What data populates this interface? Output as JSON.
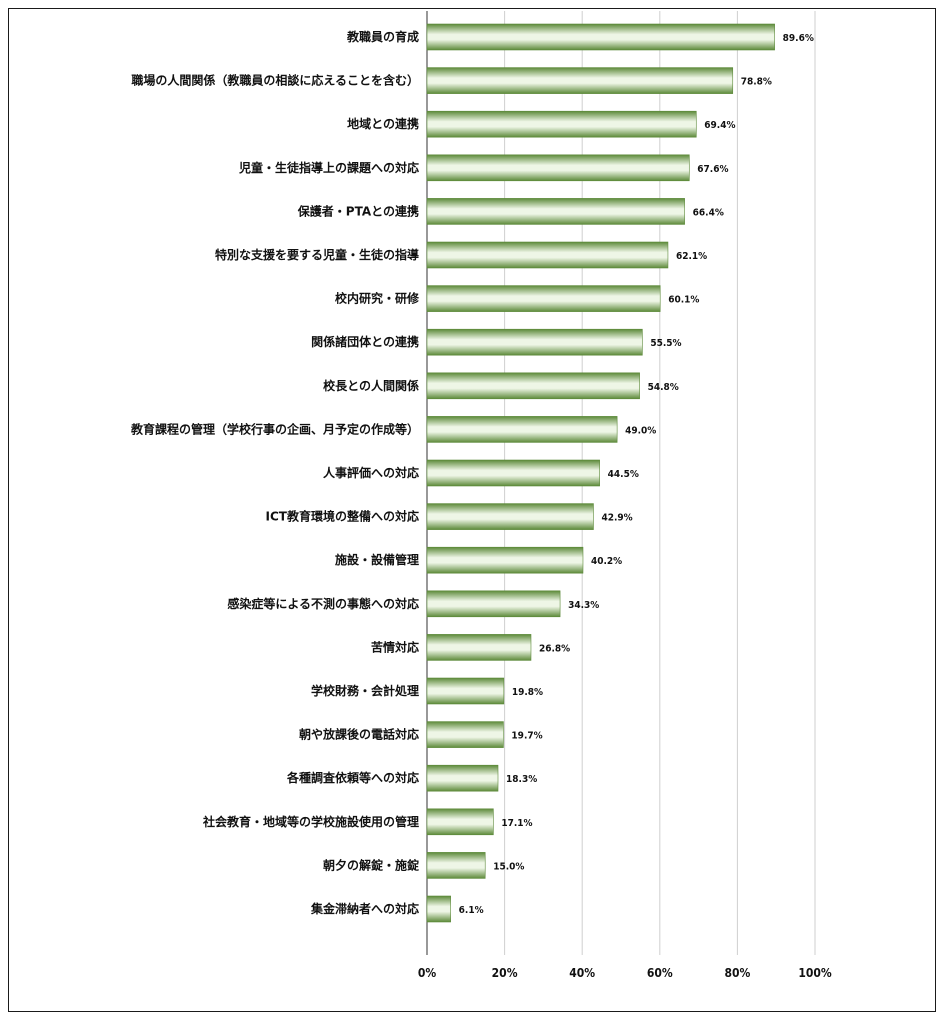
{
  "chart_data": {
    "type": "bar",
    "orientation": "horizontal",
    "categories": [
      "教職員の育成",
      "職場の人間関係（教職員の相談に応えることを含む）",
      "地域との連携",
      "児童・生徒指導上の課題への対応",
      "保護者・PTAとの連携",
      "特別な支援を要する児童・生徒の指導",
      "校内研究・研修",
      "関係諸団体との連携",
      "校長との人間関係",
      "教育課程の管理（学校行事の企画、月予定の作成等）",
      "人事評価への対応",
      "ICT教育環境の整備への対応",
      "施設・設備管理",
      "感染症等による不測の事態への対応",
      "苦情対応",
      "学校財務・会計処理",
      "朝や放課後の電話対応",
      "各種調査依頼等への対応",
      "社会教育・地域等の学校施設使用の管理",
      "朝夕の解錠・施錠",
      "集金滞納者への対応"
    ],
    "values": [
      89.6,
      78.8,
      69.4,
      67.6,
      66.4,
      62.1,
      60.1,
      55.5,
      54.8,
      49.0,
      44.5,
      42.9,
      40.2,
      34.3,
      26.8,
      19.8,
      19.7,
      18.3,
      17.1,
      15.0,
      6.1
    ],
    "value_labels": [
      "89.6%",
      "78.8%",
      "69.4%",
      "67.6%",
      "66.4%",
      "62.1%",
      "60.1%",
      "55.5%",
      "54.8%",
      "49.0%",
      "44.5%",
      "42.9%",
      "40.2%",
      "34.3%",
      "26.8%",
      "19.8%",
      "19.7%",
      "18.3%",
      "17.1%",
      "15.0%",
      "6.1%"
    ],
    "xlim": [
      0,
      100
    ],
    "xticks": [
      "0%",
      "20%",
      "40%",
      "60%",
      "80%",
      "100%"
    ],
    "grid": true,
    "legend": "none",
    "title": "",
    "xlabel": "",
    "ylabel": "",
    "colors": {
      "bar_dark": "#5d8a3a",
      "bar_mid": "#9bc27a",
      "bar_light": "#eef6e6",
      "grid": "#cfcfcf"
    }
  }
}
